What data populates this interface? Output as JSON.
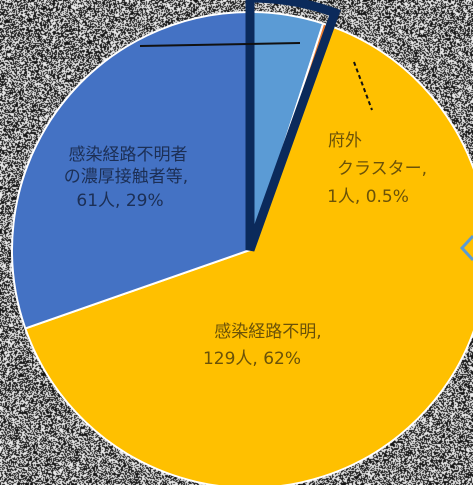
{
  "chart_data": {
    "type": "pie",
    "title": "",
    "slices": [
      {
        "label": "",
        "value": 10,
        "color": "#5b9bd5"
      },
      {
        "label": "府外クラスター",
        "value": 1,
        "value_label": "1人, 0.5%",
        "color": "#ed7d31"
      },
      {
        "label": "感染経路不明",
        "value": 129,
        "value_label": "129人, 62%",
        "color": "#ffc000"
      },
      {
        "label": "感染経路不明者の濃厚接触者等",
        "value": 61,
        "value_label": "61人, 29%",
        "color": "#4472c4"
      }
    ],
    "highlight_color": "#0b2a5b",
    "labels": {
      "blue_line1": "感染経路不明者",
      "blue_line2": "の濃厚接触者等,",
      "blue_line3": "61人, 29%",
      "orange_line1": "府外",
      "orange_line2": "クラスター,",
      "orange_line3": "1人, 0.5%",
      "yellow_line1": "感染経路不明,",
      "yellow_line2": "129人, 62%"
    }
  }
}
